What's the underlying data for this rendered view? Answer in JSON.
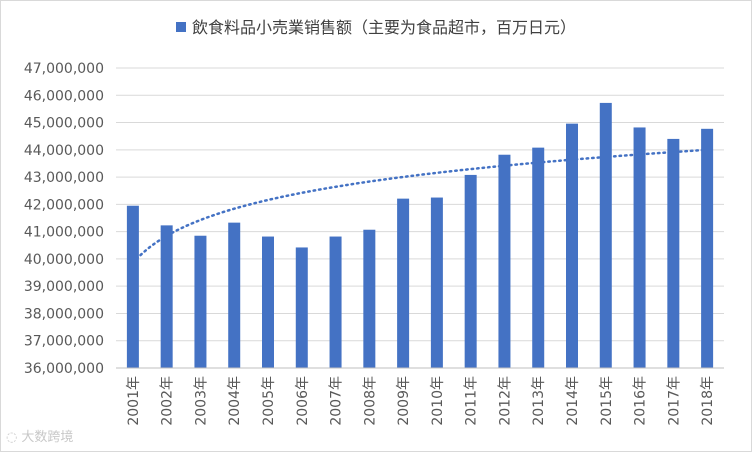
{
  "colors": {
    "bar": "#4472c4",
    "trend": "#4472c4",
    "grid": "#d9d9d9",
    "text": "#595959"
  },
  "chart_data": {
    "type": "bar",
    "title": "",
    "xlabel": "",
    "ylabel": "",
    "categories": [
      "2001年",
      "2002年",
      "2003年",
      "2004年",
      "2005年",
      "2006年",
      "2007年",
      "2008年",
      "2009年",
      "2010年",
      "2011年",
      "2012年",
      "2013年",
      "2014年",
      "2015年",
      "2016年",
      "2017年",
      "2018年"
    ],
    "series": [
      {
        "name": "飲食料品小売業销售额（主要为食品超市，百万日元）",
        "values": [
          41950000,
          41230000,
          40850000,
          41330000,
          40820000,
          40420000,
          40820000,
          41070000,
          42210000,
          42250000,
          43080000,
          43820000,
          44080000,
          44960000,
          45720000,
          44820000,
          44400000,
          44770000
        ]
      }
    ],
    "trendline": {
      "type": "logarithmic",
      "style": "dotted",
      "start": 39850000,
      "end": 44000000
    },
    "ylim": [
      36000000,
      47000000
    ],
    "ytick_step": 1000000,
    "yticks": [
      "36,000,000",
      "37,000,000",
      "38,000,000",
      "39,000,000",
      "40,000,000",
      "41,000,000",
      "42,000,000",
      "43,000,000",
      "44,000,000",
      "45,000,000",
      "46,000,000",
      "47,000,000"
    ],
    "grid": true,
    "legend_position": "top"
  },
  "watermark": {
    "text": "大数跨境",
    "icon": "logo-icon"
  }
}
